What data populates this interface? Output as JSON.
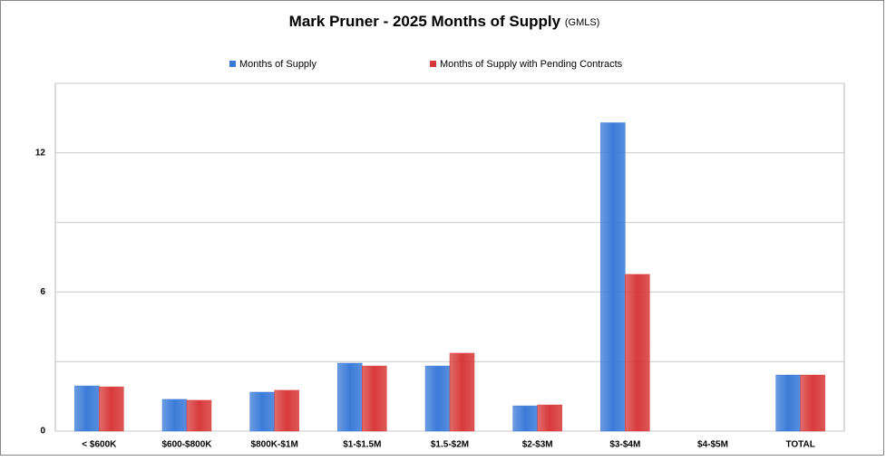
{
  "chart_data": {
    "type": "bar",
    "title": "Mark Pruner - 2025 Months of Supply",
    "subtitle": "(GMLS)",
    "categories": [
      "< $600K",
      "$600-$800K",
      "$800K-$1M",
      "$1-$1.5M",
      "$1.5-$2M",
      "$2-$3M",
      "$3-$4M",
      "$4-$5M",
      "TOTAL"
    ],
    "series": [
      {
        "name": "Months of Supply",
        "color": "#3b7bd8",
        "values": [
          1.95,
          1.37,
          1.68,
          2.93,
          2.81,
          1.09,
          13.3,
          0,
          2.42
        ]
      },
      {
        "name": "Months of Supply with Pending Contracts",
        "color": "#d83a3a",
        "values": [
          1.91,
          1.33,
          1.76,
          2.81,
          3.36,
          1.13,
          6.76,
          0,
          2.42
        ]
      }
    ],
    "ylim": [
      0,
      15
    ],
    "yticks": [
      0,
      6,
      12
    ],
    "ygrid": [
      3,
      9,
      15
    ],
    "grid": true,
    "legend": "top"
  }
}
